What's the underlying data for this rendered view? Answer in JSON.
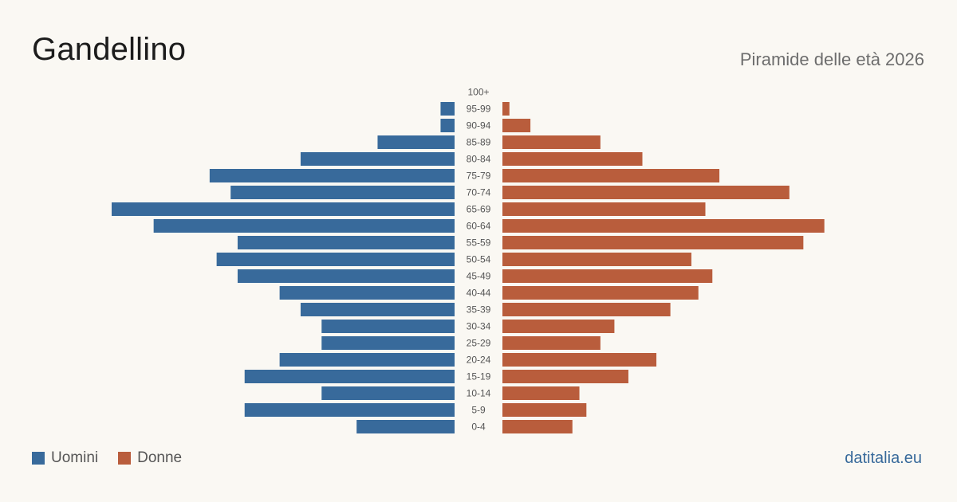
{
  "header": {
    "title": "Gandellino",
    "subtitle": "Piramide delle età 2026"
  },
  "legend": {
    "men_label": "Uomini",
    "women_label": "Donne"
  },
  "footer": {
    "brand": "datitalia.eu"
  },
  "colors": {
    "men": "#386a9b",
    "women": "#b95d3c",
    "age_label": "#555555"
  },
  "chart_data": {
    "type": "bar",
    "orientation": "horizontal-pyramid",
    "categories": [
      "100+",
      "95-99",
      "90-94",
      "85-89",
      "80-84",
      "75-79",
      "70-74",
      "65-69",
      "60-64",
      "55-59",
      "50-54",
      "45-49",
      "40-44",
      "35-39",
      "30-34",
      "25-29",
      "20-24",
      "15-19",
      "10-14",
      "5-9",
      "0-4"
    ],
    "series": [
      {
        "name": "Uomini",
        "values": [
          0,
          2,
          2,
          11,
          22,
          35,
          32,
          49,
          43,
          31,
          34,
          31,
          25,
          22,
          19,
          19,
          25,
          30,
          19,
          30,
          14
        ]
      },
      {
        "name": "Donne",
        "values": [
          0,
          1,
          4,
          14,
          20,
          31,
          41,
          29,
          46,
          43,
          27,
          30,
          28,
          24,
          16,
          14,
          22,
          18,
          11,
          12,
          10
        ]
      }
    ],
    "xlim": [
      0,
      49
    ],
    "grid": false,
    "legend_position": "bottom-left"
  }
}
